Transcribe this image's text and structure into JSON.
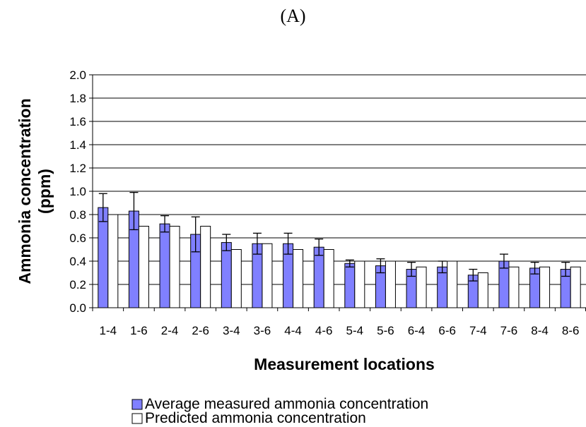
{
  "panel_label": "(A)",
  "chart_data": {
    "type": "bar",
    "title": "",
    "xlabel": "Measurement locations",
    "ylabel_line1": "Ammonia concentration",
    "ylabel_line2": "(ppm)",
    "ylim": [
      0,
      2.0
    ],
    "yticks": [
      "0.0",
      "0.2",
      "0.4",
      "0.6",
      "0.8",
      "1.0",
      "1.2",
      "1.4",
      "1.6",
      "1.8",
      "2.0"
    ],
    "grid": true,
    "legend_position": "bottom",
    "categories": [
      "1-4",
      "1-6",
      "2-4",
      "2-6",
      "3-4",
      "3-6",
      "4-4",
      "4-6",
      "5-4",
      "5-6",
      "6-4",
      "6-6",
      "7-4",
      "7-6",
      "8-4",
      "8-6"
    ],
    "series": [
      {
        "name": "Average measured ammonia concentration",
        "color": "#8080ff",
        "values": [
          0.86,
          0.83,
          0.72,
          0.63,
          0.56,
          0.55,
          0.55,
          0.52,
          0.38,
          0.36,
          0.33,
          0.35,
          0.28,
          0.4,
          0.34,
          0.33
        ],
        "error": [
          0.12,
          0.16,
          0.07,
          0.15,
          0.07,
          0.09,
          0.09,
          0.07,
          0.03,
          0.06,
          0.06,
          0.05,
          0.05,
          0.06,
          0.05,
          0.06
        ]
      },
      {
        "name": "Predicted ammonia concentration",
        "color": "#ffffff",
        "values": [
          0.8,
          0.7,
          0.7,
          0.7,
          0.5,
          0.55,
          0.5,
          0.5,
          0.4,
          0.4,
          0.35,
          0.4,
          0.3,
          0.35,
          0.35,
          0.35
        ]
      }
    ]
  }
}
